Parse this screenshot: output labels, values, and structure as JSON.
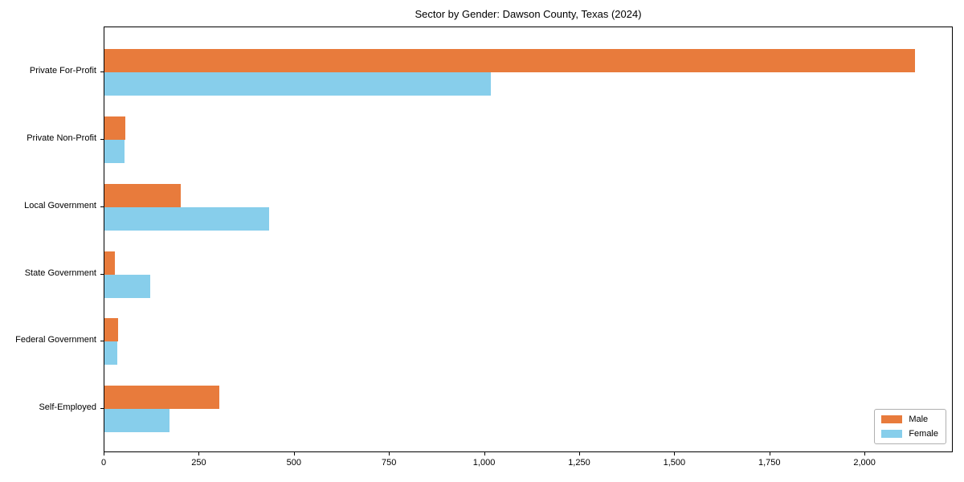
{
  "title": "Sector by Gender: Dawson County, Texas (2024)",
  "colors": {
    "male": "#e87b3c",
    "female": "#87ceeb",
    "spine": "#000000",
    "legend_border": "#b0b0b0",
    "background": "#ffffff"
  },
  "legend": {
    "position": "lower right",
    "items": [
      {
        "label": "Male",
        "color": "#e87b3c"
      },
      {
        "label": "Female",
        "color": "#87ceeb"
      }
    ]
  },
  "x_axis": {
    "tick_labels": [
      "0",
      "250",
      "500",
      "750",
      "1,000",
      "1,250",
      "1,500",
      "1,750",
      "2,000"
    ],
    "tick_values": [
      0,
      250,
      500,
      750,
      1000,
      1250,
      1500,
      1750,
      2000
    ]
  },
  "chart_data": {
    "type": "bar",
    "orientation": "horizontal",
    "title": "Sector by Gender: Dawson County, Texas (2024)",
    "categories": [
      "Private For-Profit",
      "Private Non-Profit",
      "Local Government",
      "State Government",
      "Federal Government",
      "Self-Employed"
    ],
    "series": [
      {
        "name": "Male",
        "color": "#e87b3c",
        "values": [
          2130,
          55,
          200,
          27,
          36,
          302
        ]
      },
      {
        "name": "Female",
        "color": "#87ceeb",
        "values": [
          1015,
          52,
          432,
          121,
          34,
          172
        ]
      }
    ],
    "xlabel": "",
    "ylabel": "",
    "xlim": [
      0,
      2232
    ],
    "grid": false,
    "legend_position": "lower right"
  }
}
